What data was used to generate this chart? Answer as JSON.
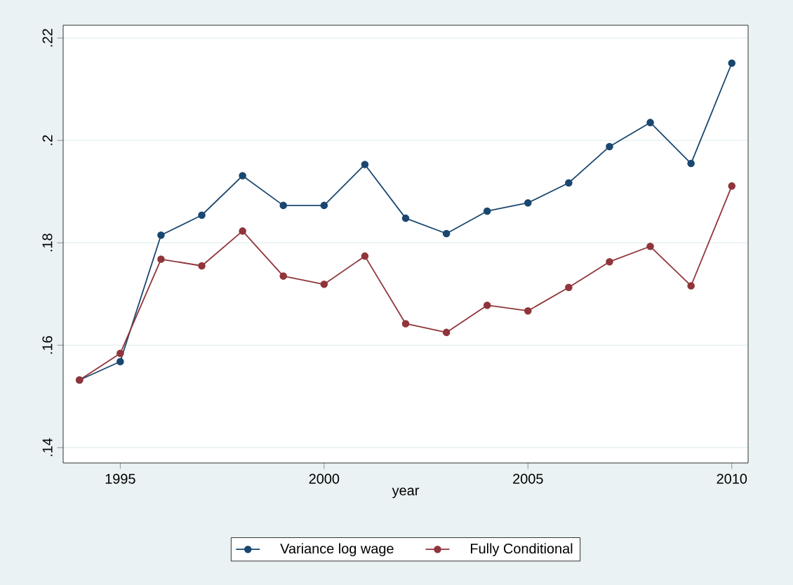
{
  "chart_data": {
    "type": "line",
    "xlabel": "year",
    "x": [
      1994,
      1995,
      1996,
      1997,
      1998,
      1999,
      2000,
      2001,
      2002,
      2003,
      2004,
      2005,
      2006,
      2007,
      2008,
      2009,
      2010
    ],
    "series": [
      {
        "name": "Variance log wage",
        "color": "#1a476f",
        "values": [
          0.1532,
          0.1568,
          0.1815,
          0.1854,
          0.1931,
          0.1873,
          0.1873,
          0.1953,
          0.1848,
          0.1818,
          0.1862,
          0.1878,
          0.1917,
          0.1988,
          0.2035,
          0.1955,
          0.2151
        ]
      },
      {
        "name": "Fully Conditional",
        "color": "#90353b",
        "values": [
          0.1532,
          0.1584,
          0.1768,
          0.1755,
          0.1823,
          0.1735,
          0.1719,
          0.1774,
          0.1642,
          0.1625,
          0.1678,
          0.1667,
          0.1713,
          0.1763,
          0.1793,
          0.1716,
          0.1911
        ]
      }
    ],
    "xlim": [
      1993.6,
      2010.4
    ],
    "xticks": [
      1995,
      2000,
      2005,
      2010
    ],
    "ylim": [
      0.137,
      0.2225
    ],
    "yticks": [
      {
        "value": 0.14,
        "label": ".14"
      },
      {
        "value": 0.16,
        "label": ".16"
      },
      {
        "value": 0.18,
        "label": ".18"
      },
      {
        "value": 0.2,
        "label": ".2"
      },
      {
        "value": 0.22,
        "label": ".22"
      }
    ],
    "grid": "y",
    "legend": "bottom",
    "marker": "circle",
    "line_style": "solid"
  }
}
